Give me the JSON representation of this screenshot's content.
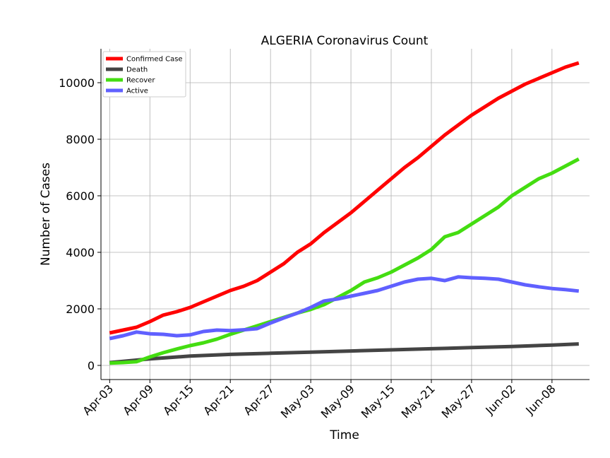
{
  "chart_data": {
    "type": "line",
    "title": "ALGERIA Coronavirus Count",
    "xlabel": "Time",
    "ylabel": "Number of Cases",
    "x_start": "2020-04-03",
    "x_end": "2020-06-12",
    "xticks": [
      "Apr-03",
      "Apr-09",
      "Apr-15",
      "Apr-21",
      "Apr-27",
      "May-03",
      "May-09",
      "May-15",
      "May-21",
      "May-27",
      "Jun-02",
      "Jun-08"
    ],
    "yticks": [
      0,
      2000,
      4000,
      6000,
      8000,
      10000
    ],
    "ylim": [
      -500,
      11200
    ],
    "grid": true,
    "legend_position": "top-left",
    "series": [
      {
        "name": "Confirmed Case",
        "color": "#ff0000",
        "points": [
          [
            "2020-04-03",
            1150
          ],
          [
            "2020-04-05",
            1250
          ],
          [
            "2020-04-07",
            1350
          ],
          [
            "2020-04-09",
            1550
          ],
          [
            "2020-04-11",
            1780
          ],
          [
            "2020-04-13",
            1900
          ],
          [
            "2020-04-15",
            2050
          ],
          [
            "2020-04-17",
            2250
          ],
          [
            "2020-04-19",
            2450
          ],
          [
            "2020-04-21",
            2650
          ],
          [
            "2020-04-23",
            2800
          ],
          [
            "2020-04-25",
            3000
          ],
          [
            "2020-04-27",
            3300
          ],
          [
            "2020-04-29",
            3600
          ],
          [
            "2020-05-01",
            4000
          ],
          [
            "2020-05-03",
            4300
          ],
          [
            "2020-05-05",
            4700
          ],
          [
            "2020-05-07",
            5050
          ],
          [
            "2020-05-09",
            5400
          ],
          [
            "2020-05-11",
            5800
          ],
          [
            "2020-05-13",
            6200
          ],
          [
            "2020-05-15",
            6600
          ],
          [
            "2020-05-17",
            7000
          ],
          [
            "2020-05-19",
            7350
          ],
          [
            "2020-05-21",
            7750
          ],
          [
            "2020-05-23",
            8150
          ],
          [
            "2020-05-25",
            8500
          ],
          [
            "2020-05-27",
            8850
          ],
          [
            "2020-05-29",
            9150
          ],
          [
            "2020-05-31",
            9450
          ],
          [
            "2020-06-02",
            9700
          ],
          [
            "2020-06-04",
            9950
          ],
          [
            "2020-06-06",
            10150
          ],
          [
            "2020-06-08",
            10350
          ],
          [
            "2020-06-10",
            10550
          ],
          [
            "2020-06-12",
            10700
          ]
        ]
      },
      {
        "name": "Death",
        "color": "#444444",
        "points": [
          [
            "2020-04-03",
            100
          ],
          [
            "2020-04-09",
            230
          ],
          [
            "2020-04-15",
            330
          ],
          [
            "2020-04-21",
            390
          ],
          [
            "2020-04-27",
            430
          ],
          [
            "2020-05-03",
            470
          ],
          [
            "2020-05-09",
            510
          ],
          [
            "2020-05-15",
            550
          ],
          [
            "2020-05-21",
            590
          ],
          [
            "2020-05-27",
            630
          ],
          [
            "2020-06-02",
            670
          ],
          [
            "2020-06-08",
            720
          ],
          [
            "2020-06-12",
            760
          ]
        ]
      },
      {
        "name": "Recover",
        "color": "#44dd11",
        "points": [
          [
            "2020-04-03",
            80
          ],
          [
            "2020-04-05",
            100
          ],
          [
            "2020-04-07",
            130
          ],
          [
            "2020-04-09",
            300
          ],
          [
            "2020-04-11",
            450
          ],
          [
            "2020-04-13",
            580
          ],
          [
            "2020-04-15",
            700
          ],
          [
            "2020-04-17",
            800
          ],
          [
            "2020-04-19",
            930
          ],
          [
            "2020-04-21",
            1100
          ],
          [
            "2020-04-23",
            1250
          ],
          [
            "2020-04-25",
            1400
          ],
          [
            "2020-04-27",
            1550
          ],
          [
            "2020-04-29",
            1700
          ],
          [
            "2020-05-01",
            1850
          ],
          [
            "2020-05-03",
            1980
          ],
          [
            "2020-05-05",
            2150
          ],
          [
            "2020-05-07",
            2400
          ],
          [
            "2020-05-09",
            2650
          ],
          [
            "2020-05-11",
            2950
          ],
          [
            "2020-05-13",
            3100
          ],
          [
            "2020-05-15",
            3300
          ],
          [
            "2020-05-17",
            3550
          ],
          [
            "2020-05-19",
            3800
          ],
          [
            "2020-05-21",
            4100
          ],
          [
            "2020-05-23",
            4550
          ],
          [
            "2020-05-25",
            4700
          ],
          [
            "2020-05-27",
            5000
          ],
          [
            "2020-05-29",
            5300
          ],
          [
            "2020-05-31",
            5600
          ],
          [
            "2020-06-02",
            6000
          ],
          [
            "2020-06-04",
            6300
          ],
          [
            "2020-06-06",
            6600
          ],
          [
            "2020-06-08",
            6800
          ],
          [
            "2020-06-10",
            7050
          ],
          [
            "2020-06-12",
            7300
          ]
        ]
      },
      {
        "name": "Active",
        "color": "#6060ff",
        "points": [
          [
            "2020-04-03",
            950
          ],
          [
            "2020-04-05",
            1050
          ],
          [
            "2020-04-07",
            1180
          ],
          [
            "2020-04-09",
            1120
          ],
          [
            "2020-04-11",
            1100
          ],
          [
            "2020-04-13",
            1050
          ],
          [
            "2020-04-15",
            1080
          ],
          [
            "2020-04-17",
            1200
          ],
          [
            "2020-04-19",
            1250
          ],
          [
            "2020-04-21",
            1230
          ],
          [
            "2020-04-23",
            1260
          ],
          [
            "2020-04-25",
            1300
          ],
          [
            "2020-04-27",
            1500
          ],
          [
            "2020-04-29",
            1680
          ],
          [
            "2020-05-01",
            1850
          ],
          [
            "2020-05-03",
            2050
          ],
          [
            "2020-05-05",
            2280
          ],
          [
            "2020-05-07",
            2350
          ],
          [
            "2020-05-09",
            2450
          ],
          [
            "2020-05-11",
            2550
          ],
          [
            "2020-05-13",
            2650
          ],
          [
            "2020-05-15",
            2800
          ],
          [
            "2020-05-17",
            2950
          ],
          [
            "2020-05-19",
            3050
          ],
          [
            "2020-05-21",
            3080
          ],
          [
            "2020-05-23",
            3000
          ],
          [
            "2020-05-25",
            3130
          ],
          [
            "2020-05-27",
            3100
          ],
          [
            "2020-05-29",
            3080
          ],
          [
            "2020-05-31",
            3050
          ],
          [
            "2020-06-02",
            2950
          ],
          [
            "2020-06-04",
            2850
          ],
          [
            "2020-06-06",
            2780
          ],
          [
            "2020-06-08",
            2720
          ],
          [
            "2020-06-10",
            2680
          ],
          [
            "2020-06-12",
            2630
          ]
        ]
      }
    ]
  }
}
